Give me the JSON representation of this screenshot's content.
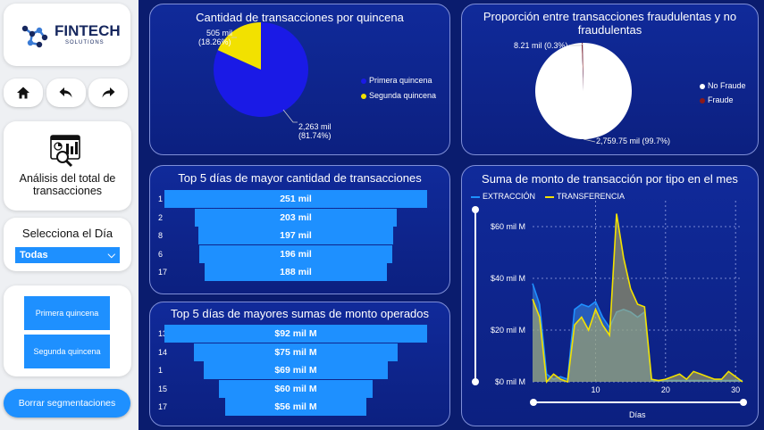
{
  "brand": {
    "name": "FINTECH",
    "tagline": "SOLUTIONS"
  },
  "analysis": {
    "label": "Análisis del total de transacciones"
  },
  "slicer": {
    "title": "Selecciona el Día",
    "selected": "Todas"
  },
  "quincena_buttons": [
    "Primera quincena",
    "Segunda quincena"
  ],
  "clear_button": "Borrar segmentaciones",
  "charts": {
    "pie_quincena": {
      "title": "Cantidad de transacciones por quincena",
      "labels": {
        "small": "505 mil",
        "small_pct": "(18.26%)",
        "big": "2,263 mil",
        "big_pct": "(81.74%)"
      },
      "legend": [
        "Primera quincena",
        "Segunda quincena"
      ]
    },
    "pie_fraude": {
      "title": "Proporción entre transacciones fraudulentas y no fraudulentas",
      "labels": {
        "small": "8.21 mil (0.3%)",
        "big": "2,759.75 mil (99.7%)"
      },
      "legend": [
        "No Fraude",
        "Fraude"
      ]
    },
    "top_count": {
      "title": "Top 5 días de mayor cantidad de transacciones"
    },
    "top_amount": {
      "title": "Top 5 días de mayores sumas de monto operados"
    },
    "line": {
      "title": "Suma de monto de transacción por tipo en el mes",
      "legend": [
        "EXTRACCIÓN",
        "TRANSFERENCIA"
      ],
      "yticks": [
        "$60 mil M",
        "$40 mil M",
        "$20 mil M",
        "$0 mil M"
      ],
      "xticks": [
        "10",
        "20",
        "30"
      ],
      "xlabel": "Días"
    }
  },
  "chart_data": [
    {
      "type": "pie",
      "title": "Cantidad de transacciones por quincena",
      "categories": [
        "Primera quincena",
        "Segunda quincena"
      ],
      "values": [
        2263,
        505
      ],
      "unit": "mil",
      "percent": [
        81.74,
        18.26
      ],
      "colors": [
        "#1a1ae6",
        "#f2e100"
      ],
      "legend_position": "right"
    },
    {
      "type": "pie",
      "title": "Proporción entre transacciones fraudulentas y no fraudulentas",
      "categories": [
        "No Fraude",
        "Fraude"
      ],
      "values": [
        2759.75,
        8.21
      ],
      "unit": "mil",
      "percent": [
        99.7,
        0.3
      ],
      "colors": [
        "#ffffff",
        "#8b1a1a"
      ],
      "legend_position": "right"
    },
    {
      "type": "bar",
      "title": "Top 5 días de mayor cantidad de transacciones",
      "categories": [
        "1",
        "2",
        "8",
        "6",
        "17"
      ],
      "values": [
        251,
        203,
        197,
        196,
        188
      ],
      "value_labels": [
        "251 mil",
        "203 mil",
        "197 mil",
        "196 mil",
        "188 mil"
      ]
    },
    {
      "type": "bar",
      "title": "Top 5 días de mayores sumas de monto operados",
      "categories": [
        "13",
        "14",
        "1",
        "15",
        "17"
      ],
      "values": [
        92,
        75,
        69,
        60,
        56
      ],
      "value_labels": [
        "$92 mil M",
        "$75 mil M",
        "$69 mil M",
        "$60 mil M",
        "$56 mil M"
      ]
    },
    {
      "type": "area",
      "title": "Suma de monto de transacción por tipo en el mes",
      "xlabel": "Días",
      "ylabel": "",
      "xlim": [
        1,
        31
      ],
      "ylim": [
        0,
        70
      ],
      "x": [
        1,
        2,
        3,
        4,
        5,
        6,
        7,
        8,
        9,
        10,
        11,
        12,
        13,
        14,
        15,
        16,
        17,
        18,
        19,
        20,
        21,
        22,
        23,
        24,
        25,
        26,
        27,
        28,
        29,
        30,
        31
      ],
      "series": [
        {
          "name": "EXTRACCIÓN",
          "color": "#1e90ff",
          "values": [
            38,
            30,
            3,
            1,
            2,
            1,
            28,
            30,
            29,
            31,
            25,
            21,
            27,
            28,
            27,
            25,
            27,
            0.5,
            0.5,
            0.5,
            0.5,
            0.5,
            0.5,
            0.5,
            0.5,
            0.5,
            0.5,
            0.5,
            0.5,
            0.5,
            0.5
          ]
        },
        {
          "name": "TRANSFERENCIA",
          "color": "#f2e100",
          "values": [
            32,
            25,
            0,
            3,
            1,
            0,
            22,
            25,
            20,
            28,
            22,
            18,
            65,
            48,
            36,
            30,
            29,
            1,
            0.5,
            1,
            2,
            3,
            1,
            4,
            3,
            2,
            1,
            1,
            4,
            2,
            0
          ]
        }
      ]
    }
  ]
}
